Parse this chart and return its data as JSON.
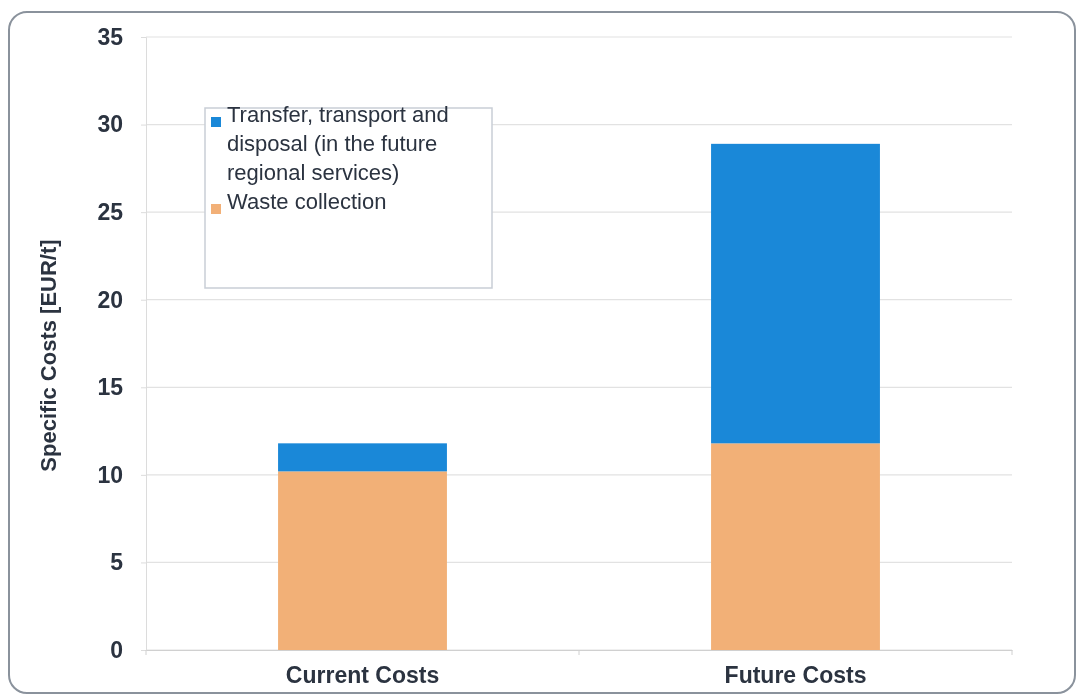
{
  "chart_data": {
    "type": "bar",
    "stacked": true,
    "ylabel": "Specific Costs [EUR/t]",
    "categories": [
      "Current Costs",
      "Future Costs"
    ],
    "series": [
      {
        "name": "Waste collection",
        "color": "#f2b077",
        "values": [
          10.2,
          11.8
        ]
      },
      {
        "name": "Transfer, transport and disposal (in the future regional services)",
        "color": "#1a88d8",
        "values": [
          1.6,
          17.1
        ]
      }
    ],
    "ylim": [
      0,
      35
    ],
    "yticks": [
      0,
      5,
      10,
      15,
      20,
      25,
      30,
      35
    ],
    "grid": "y",
    "legend": "top left"
  }
}
